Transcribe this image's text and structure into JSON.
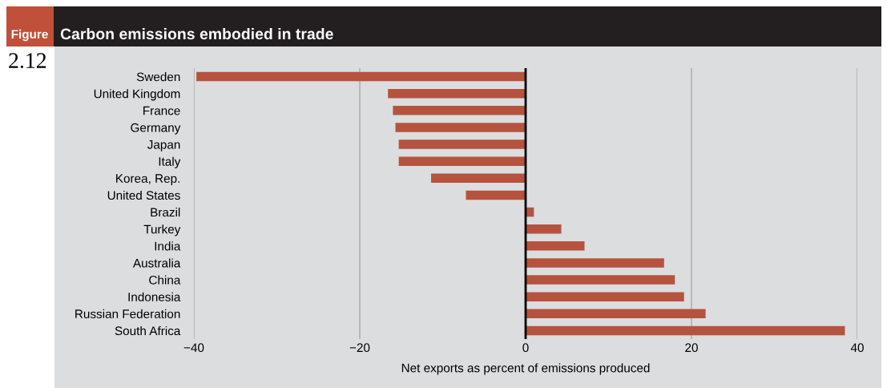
{
  "chart_data": {
    "type": "bar",
    "orientation": "horizontal",
    "title": "Carbon emissions embodied in trade",
    "annotations": [
      "Figure",
      "2.12"
    ],
    "xlabel": "Net exports as percent of emissions produced",
    "categories": [
      "Sweden",
      "United Kingdom",
      "France",
      "Germany",
      "Japan",
      "Italy",
      "Korea, Rep.",
      "United States",
      "Brazil",
      "Turkey",
      "India",
      "Australia",
      "China",
      "Indonesia",
      "Russian Federation",
      "South Africa"
    ],
    "values": [
      -39.7,
      -16.6,
      -16.0,
      -15.7,
      -15.3,
      -15.3,
      -11.4,
      -7.2,
      1.0,
      4.3,
      7.1,
      16.7,
      18.0,
      19.1,
      21.7,
      38.5
    ],
    "color": "#b5533f",
    "xlim": [
      -40,
      40
    ],
    "xticks": [
      {
        "value": -40,
        "label": "−40"
      },
      {
        "value": -20,
        "label": "−20"
      },
      0,
      20,
      40
    ],
    "grid": "x",
    "ref_lines": [
      {
        "axis": "x",
        "value": 0,
        "color": "#000000"
      }
    ]
  }
}
